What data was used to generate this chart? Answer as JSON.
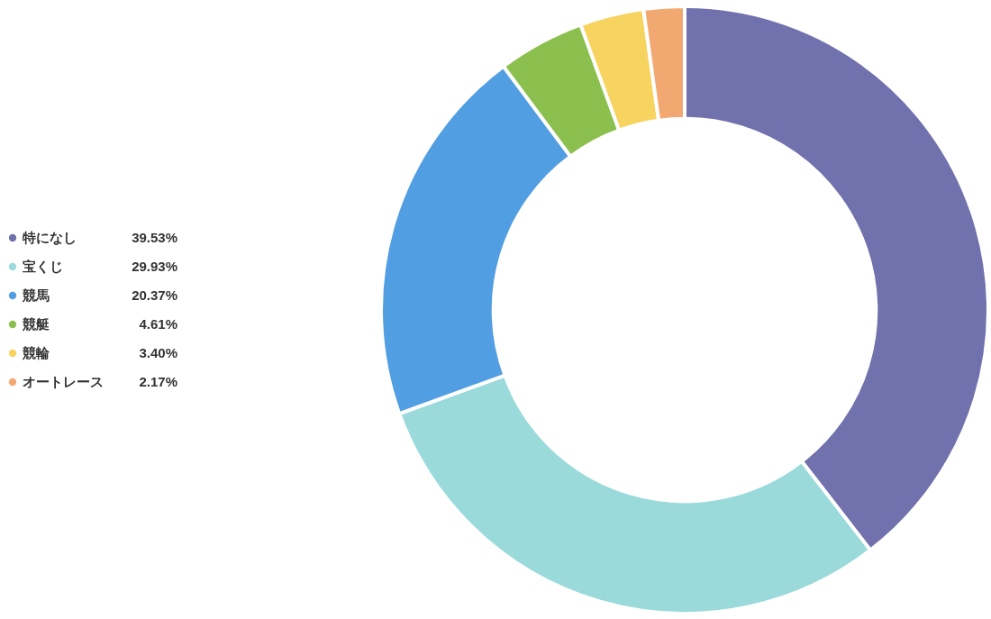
{
  "chart_data": {
    "type": "donut",
    "categories": [
      "特になし",
      "宝くじ",
      "競馬",
      "競艇",
      "競輪",
      "オートレース"
    ],
    "values": [
      39.53,
      29.93,
      20.37,
      4.61,
      3.4,
      2.17
    ],
    "value_labels": [
      "39.53%",
      "29.93%",
      "20.37%",
      "4.61%",
      "3.40%",
      "2.17%"
    ],
    "colors": [
      "#7171ad",
      "#9adada",
      "#519ee3",
      "#8bc04f",
      "#f7d35f",
      "#f2a971"
    ],
    "legend": "left"
  }
}
